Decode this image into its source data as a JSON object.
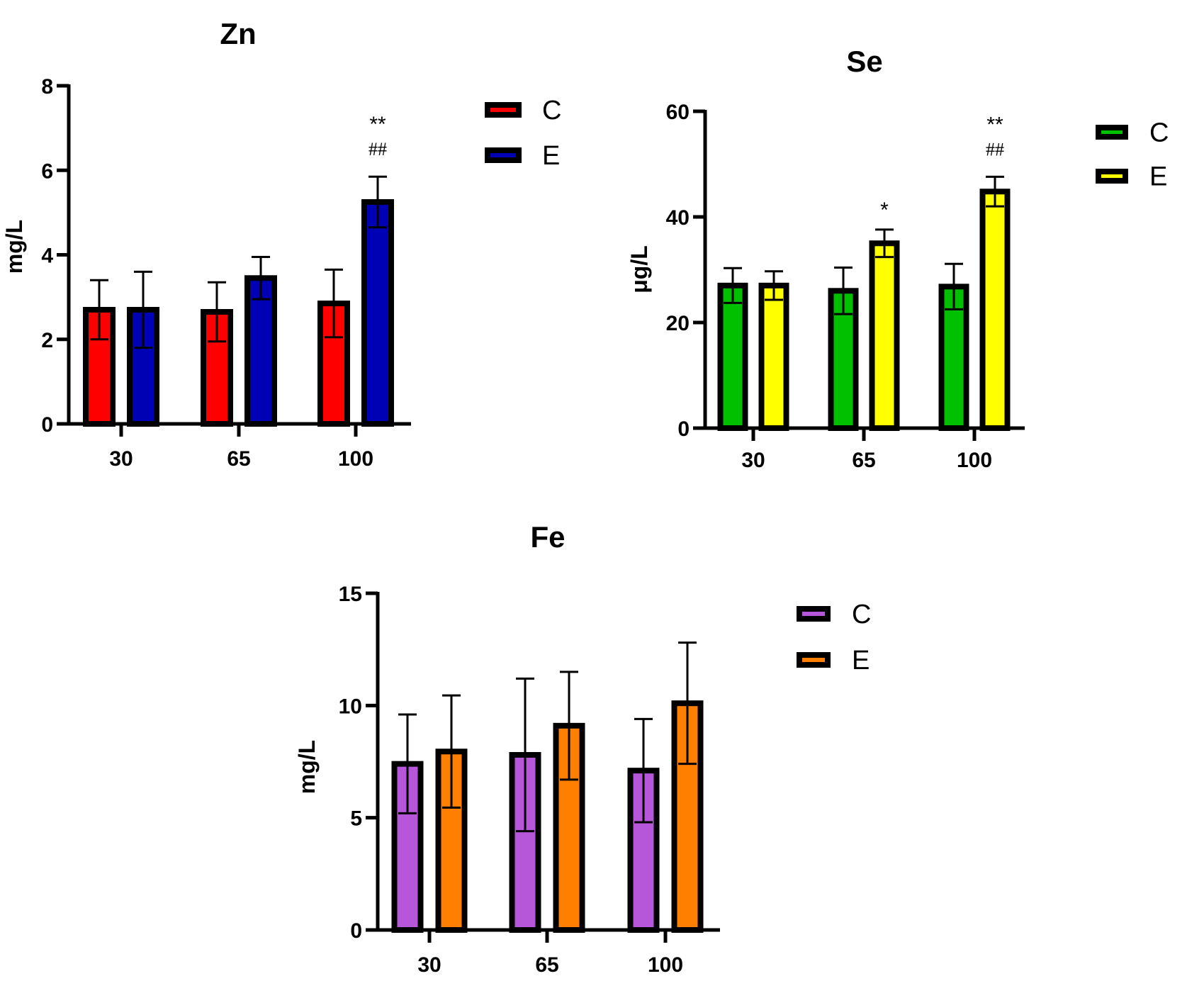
{
  "chart_data": [
    {
      "id": "zn",
      "type": "bar",
      "title": "Zn",
      "xlabel": "",
      "ylabel": "mg/L",
      "ylim": [
        0,
        8
      ],
      "yticks": [
        0,
        2,
        4,
        6,
        8
      ],
      "categories": [
        "30",
        "65",
        "100"
      ],
      "grid": false,
      "legend_position": "right",
      "series": [
        {
          "name": "C",
          "color": "#ff0000",
          "values": [
            2.7,
            2.65,
            2.85
          ],
          "error": [
            0.7,
            0.7,
            0.8
          ]
        },
        {
          "name": "E",
          "color": "#0000b4",
          "values": [
            2.7,
            3.45,
            5.25
          ],
          "error": [
            0.9,
            0.5,
            0.6
          ]
        }
      ],
      "annotations": [
        {
          "category": "100",
          "series": "E",
          "lines": [
            "**",
            "##"
          ]
        }
      ]
    },
    {
      "id": "se",
      "type": "bar",
      "title": "Se",
      "xlabel": "",
      "ylabel": "μg/L",
      "ylim": [
        0,
        60
      ],
      "yticks": [
        0,
        20,
        40,
        60
      ],
      "categories": [
        "30",
        "65",
        "100"
      ],
      "grid": false,
      "legend_position": "right",
      "series": [
        {
          "name": "C",
          "color": "#00c000",
          "values": [
            27,
            26,
            26.8
          ],
          "error": [
            3.3,
            4.4,
            4.3
          ]
        },
        {
          "name": "E",
          "color": "#ffff00",
          "values": [
            27,
            35,
            44.8
          ],
          "error": [
            2.7,
            2.6,
            2.8
          ]
        }
      ],
      "annotations": [
        {
          "category": "65",
          "series": "E",
          "lines": [
            "*"
          ]
        },
        {
          "category": "100",
          "series": "E",
          "lines": [
            "**",
            "##"
          ]
        }
      ]
    },
    {
      "id": "fe",
      "type": "bar",
      "title": "Fe",
      "xlabel": "",
      "ylabel": "mg/L",
      "ylim": [
        0,
        15
      ],
      "yticks": [
        0,
        5,
        10,
        15
      ],
      "categories": [
        "30",
        "65",
        "100"
      ],
      "grid": false,
      "legend_position": "right",
      "series": [
        {
          "name": "C",
          "color": "#b656d8",
          "values": [
            7.4,
            7.8,
            7.1
          ],
          "error": [
            2.2,
            3.4,
            2.3
          ]
        },
        {
          "name": "E",
          "color": "#ff8000",
          "values": [
            7.95,
            9.1,
            10.1
          ],
          "error": [
            2.5,
            2.4,
            2.7
          ]
        }
      ],
      "annotations": []
    }
  ]
}
